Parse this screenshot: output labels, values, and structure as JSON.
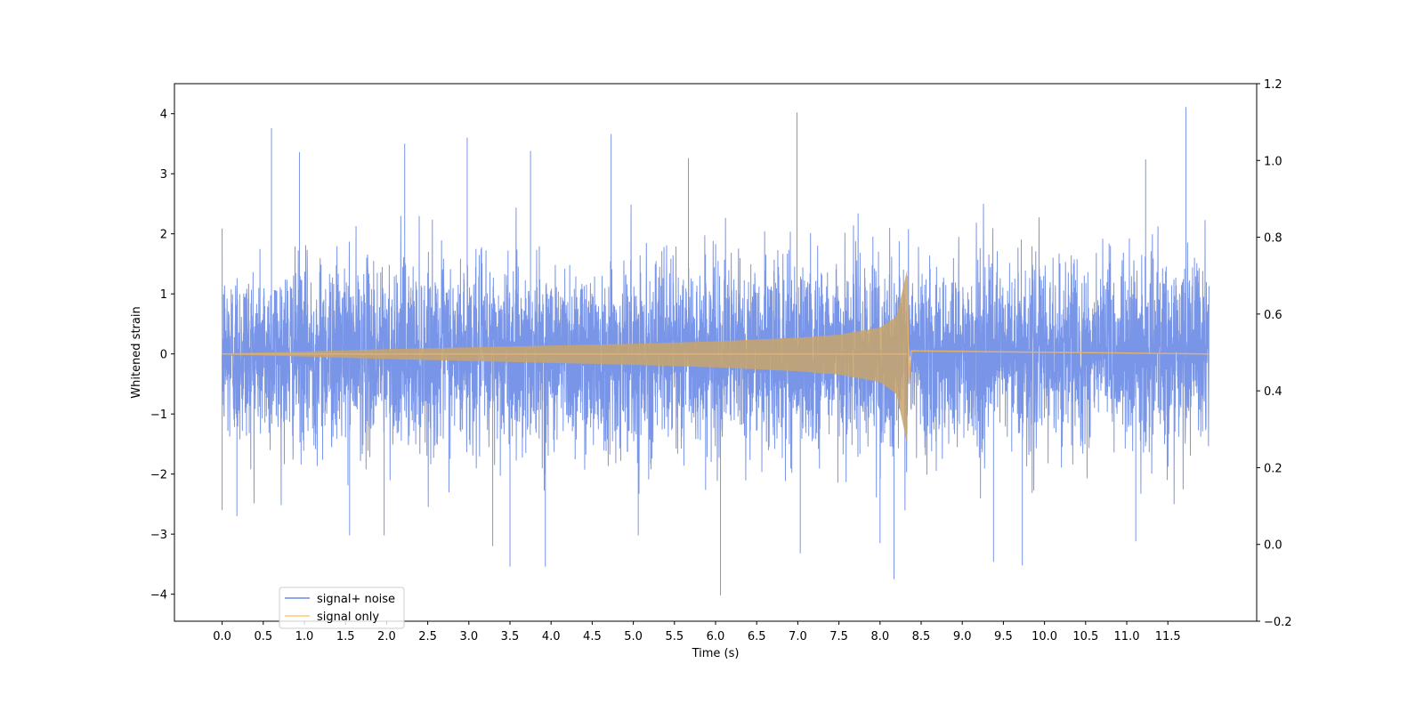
{
  "chart_data": {
    "type": "line",
    "title": "",
    "xlabel": "Time (s)",
    "ylabel": "Whitened strain",
    "y2label": "",
    "xlim": [
      -0.58,
      12.58
    ],
    "ylim": [
      -4.45,
      4.5
    ],
    "y2lim": [
      -0.2,
      1.2
    ],
    "x_ticks": [
      0.0,
      0.5,
      1.0,
      1.5,
      2.0,
      2.5,
      3.0,
      3.5,
      4.0,
      4.5,
      5.0,
      5.5,
      6.0,
      6.5,
      7.0,
      7.5,
      8.0,
      8.5,
      9.0,
      9.5,
      10.0,
      10.5,
      11.0,
      11.5
    ],
    "y_ticks": [
      4,
      3,
      2,
      1,
      0,
      -1,
      -2,
      -3,
      -4
    ],
    "y2_ticks": [
      1.2,
      1.0,
      0.8,
      0.6,
      0.4,
      0.2,
      0.0,
      -0.2
    ],
    "grid": false,
    "legend_position": "lower-left",
    "series": [
      {
        "name": "signal+ noise",
        "color": "#6a89e6",
        "x_range": [
          0.0,
          12.0
        ],
        "noise_std": 0.75,
        "spikes": [
          {
            "x": 0.6,
            "y": 3.76
          },
          {
            "x": 0.94,
            "y": 3.36
          },
          {
            "x": 2.22,
            "y": 3.5
          },
          {
            "x": 2.98,
            "y": 3.6
          },
          {
            "x": 3.75,
            "y": 3.38
          },
          {
            "x": 4.73,
            "y": 3.66
          },
          {
            "x": 5.67,
            "y": 3.26
          },
          {
            "x": 6.99,
            "y": 4.02
          },
          {
            "x": 11.23,
            "y": 3.24
          },
          {
            "x": 11.72,
            "y": 4.11
          },
          {
            "x": 0.18,
            "y": -2.7
          },
          {
            "x": 1.55,
            "y": -3.02
          },
          {
            "x": 1.97,
            "y": -3.02
          },
          {
            "x": 3.5,
            "y": -3.54
          },
          {
            "x": 3.93,
            "y": -3.54
          },
          {
            "x": 3.29,
            "y": -3.2
          },
          {
            "x": 5.06,
            "y": -3.02
          },
          {
            "x": 6.06,
            "y": -4.02
          },
          {
            "x": 7.03,
            "y": -3.32
          },
          {
            "x": 8.17,
            "y": -3.75
          },
          {
            "x": 8.0,
            "y": -3.15
          },
          {
            "x": 9.38,
            "y": -3.46
          },
          {
            "x": 9.73,
            "y": -3.52
          },
          {
            "x": 11.11,
            "y": -3.12
          },
          {
            "x": 0.0,
            "y": -2.6
          }
        ]
      },
      {
        "name": "signal only",
        "color": "#ffa500",
        "x_range": [
          0.0,
          12.0
        ],
        "merger_time": 8.33,
        "envelope": [
          {
            "x": 0.0,
            "y": 0.01
          },
          {
            "x": 1.0,
            "y": 0.04
          },
          {
            "x": 2.0,
            "y": 0.08
          },
          {
            "x": 3.0,
            "y": 0.11
          },
          {
            "x": 4.0,
            "y": 0.14
          },
          {
            "x": 5.0,
            "y": 0.17
          },
          {
            "x": 6.0,
            "y": 0.21
          },
          {
            "x": 7.0,
            "y": 0.27
          },
          {
            "x": 7.5,
            "y": 0.32
          },
          {
            "x": 8.0,
            "y": 0.44
          },
          {
            "x": 8.2,
            "y": 0.62
          },
          {
            "x": 8.33,
            "y": 1.4
          }
        ]
      }
    ]
  }
}
